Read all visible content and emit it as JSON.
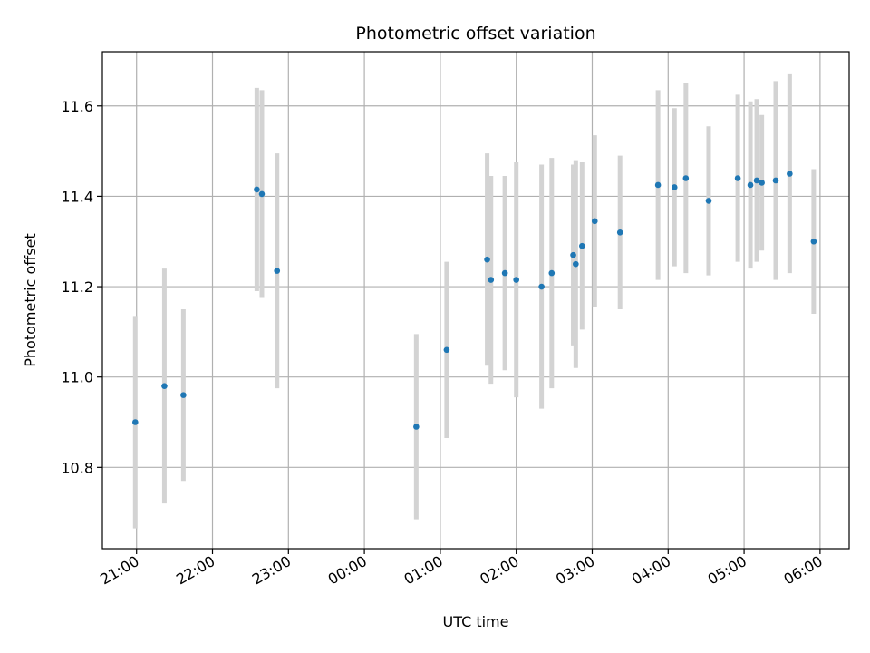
{
  "chart_data": {
    "type": "scatter",
    "title": "Photometric offset variation",
    "xlabel": "UTC time",
    "ylabel": "Photometric offset",
    "x_axis": "time",
    "xlim": [
      "20:33",
      "06:23"
    ],
    "ylim": [
      10.62,
      11.72
    ],
    "x_ticks": [
      "21:00",
      "22:00",
      "23:00",
      "00:00",
      "01:00",
      "02:00",
      "03:00",
      "04:00",
      "05:00",
      "06:00"
    ],
    "y_ticks": [
      "10.8",
      "11.0",
      "11.2",
      "11.4",
      "11.6"
    ],
    "grid": true,
    "marker_color": "#1f77b4",
    "errorbar_color": "#d3d3d3",
    "points": [
      {
        "t": "20:59",
        "y": 10.9,
        "err": 0.235
      },
      {
        "t": "21:22",
        "y": 10.98,
        "err": 0.26
      },
      {
        "t": "21:37",
        "y": 10.96,
        "err": 0.19
      },
      {
        "t": "22:35",
        "y": 11.415,
        "err": 0.225
      },
      {
        "t": "22:39",
        "y": 11.405,
        "err": 0.23
      },
      {
        "t": "22:51",
        "y": 11.235,
        "err": 0.26
      },
      {
        "t": "00:41",
        "y": 10.89,
        "err": 0.205
      },
      {
        "t": "01:05",
        "y": 11.06,
        "err": 0.195
      },
      {
        "t": "01:37",
        "y": 11.26,
        "err": 0.235
      },
      {
        "t": "01:40",
        "y": 11.215,
        "err": 0.23
      },
      {
        "t": "01:51",
        "y": 11.23,
        "err": 0.215
      },
      {
        "t": "02:00",
        "y": 11.215,
        "err": 0.26
      },
      {
        "t": "02:20",
        "y": 11.2,
        "err": 0.27
      },
      {
        "t": "02:28",
        "y": 11.23,
        "err": 0.255
      },
      {
        "t": "02:45",
        "y": 11.27,
        "err": 0.2
      },
      {
        "t": "02:47",
        "y": 11.25,
        "err": 0.23
      },
      {
        "t": "02:52",
        "y": 11.29,
        "err": 0.185
      },
      {
        "t": "03:02",
        "y": 11.345,
        "err": 0.19
      },
      {
        "t": "03:22",
        "y": 11.32,
        "err": 0.17
      },
      {
        "t": "03:52",
        "y": 11.425,
        "err": 0.21
      },
      {
        "t": "04:05",
        "y": 11.42,
        "err": 0.175
      },
      {
        "t": "04:14",
        "y": 11.44,
        "err": 0.21
      },
      {
        "t": "04:32",
        "y": 11.39,
        "err": 0.165
      },
      {
        "t": "04:55",
        "y": 11.44,
        "err": 0.185
      },
      {
        "t": "05:05",
        "y": 11.425,
        "err": 0.185
      },
      {
        "t": "05:10",
        "y": 11.435,
        "err": 0.18
      },
      {
        "t": "05:14",
        "y": 11.43,
        "err": 0.15
      },
      {
        "t": "05:25",
        "y": 11.435,
        "err": 0.22
      },
      {
        "t": "05:36",
        "y": 11.45,
        "err": 0.22
      },
      {
        "t": "05:55",
        "y": 11.3,
        "err": 0.16
      }
    ]
  }
}
